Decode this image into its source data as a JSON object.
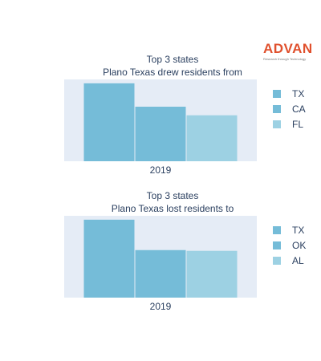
{
  "brand": {
    "name": "ADVAN",
    "tagline": "Research through Technology"
  },
  "chart_data": [
    {
      "type": "bar",
      "title_lines": [
        "Top 3 states",
        "Plano Texas drew residents from"
      ],
      "categories": [
        "2019"
      ],
      "series": [
        {
          "name": "TX",
          "values": [
            1.0
          ],
          "color": "#75bcd8"
        },
        {
          "name": "CA",
          "values": [
            0.7
          ],
          "color": "#75bcd8"
        },
        {
          "name": "FL",
          "values": [
            0.59
          ],
          "color": "#9dd1e3"
        }
      ],
      "ylim": [
        0,
        1.05
      ],
      "yaxis_visible": false,
      "legend_position": "right",
      "plot_background": "#e5ecf6"
    },
    {
      "type": "bar",
      "title_lines": [
        "Top 3 states",
        "Plano Texas lost residents to"
      ],
      "categories": [
        "2019"
      ],
      "series": [
        {
          "name": "TX",
          "values": [
            1.0
          ],
          "color": "#75bcd8"
        },
        {
          "name": "OK",
          "values": [
            0.61
          ],
          "color": "#75bcd8"
        },
        {
          "name": "AL",
          "values": [
            0.6
          ],
          "color": "#9dd1e3"
        }
      ],
      "ylim": [
        0,
        1.05
      ],
      "yaxis_visible": false,
      "legend_position": "right",
      "plot_background": "#e5ecf6"
    }
  ]
}
